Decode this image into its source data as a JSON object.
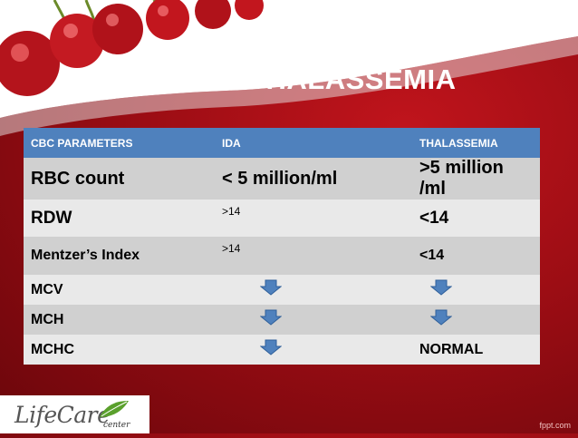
{
  "slide": {
    "title": "IDA / THALASSEMIA",
    "footer": "fppt.com"
  },
  "table": {
    "headers": [
      "CBC PARAMETERS",
      "IDA",
      "THALASSEMIA"
    ],
    "rows": [
      {
        "param": "RBC count",
        "ida": "< 5 million/ml",
        "thal": ">5 million /ml"
      },
      {
        "param": "RDW",
        "ida": ">14",
        "thal": "<14"
      },
      {
        "param": "Mentzer’s Index",
        "ida": ">14",
        "thal": "<14"
      },
      {
        "param": "MCV",
        "ida": "down-arrow-icon",
        "thal": "down-arrow-icon"
      },
      {
        "param": "MCH",
        "ida": "down-arrow-icon",
        "thal": "down-arrow-icon"
      },
      {
        "param": "MCHC",
        "ida": "down-arrow-icon",
        "thal": "NORMAL"
      }
    ]
  },
  "logo": {
    "name": "LifeCare",
    "sub": "center"
  },
  "colors": {
    "header_blue": "#4f81bd",
    "background_red": "#9c0d14",
    "arrow_blue": "#4f81bd"
  }
}
